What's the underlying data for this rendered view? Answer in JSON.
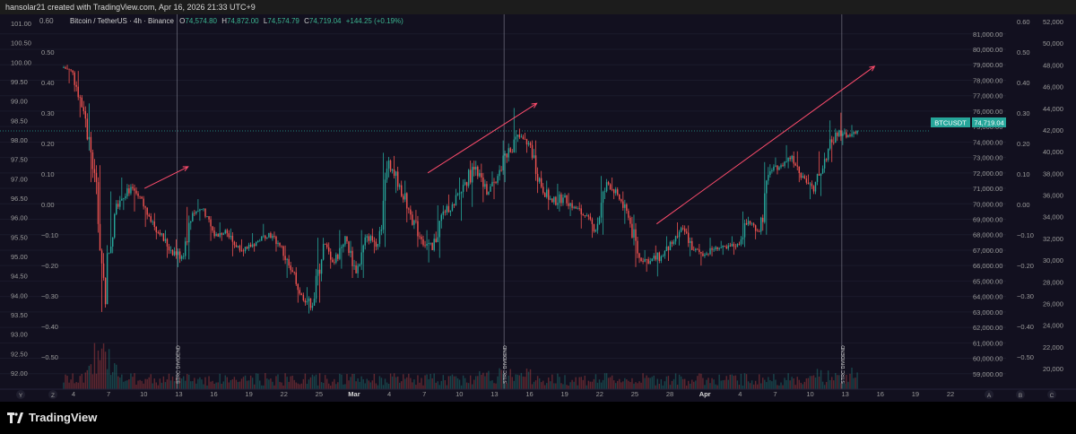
{
  "header": {
    "creator_line": "hansolar21 created with TradingView.com, Apr 16, 2026 21:33 UTC+9"
  },
  "brand": {
    "name": "TradingView"
  },
  "legend": {
    "symbol": "Bitcoin / TetherUS · 4h · Binance",
    "open_label": "O",
    "open": "74,574.80",
    "high_label": "H",
    "high": "74,872.00",
    "low_label": "L",
    "low": "74,574.79",
    "close_label": "C",
    "close": "74,719.04",
    "change": "+144.25 (+0.19%)",
    "top_scale_value": "0.60"
  },
  "price_tag": {
    "symbol": "BTCUSDT",
    "value": "74,719.04"
  },
  "annotations": {
    "event_label": "STRC DIVIDEND",
    "event_lines": [
      "Feb 13",
      "Mar 15",
      "Apr 15"
    ],
    "arrows": [
      {
        "from": [
          "Feb 10",
          71000
        ],
        "to": [
          "Feb 14",
          72400
        ]
      },
      {
        "from": [
          "Mar 8",
          72000
        ],
        "to": [
          "Mar 18",
          76500
        ]
      },
      {
        "from": [
          "Mar 29",
          68700
        ],
        "to": [
          "Apr 18",
          78900
        ]
      }
    ]
  },
  "colors": {
    "up": "#26a69a",
    "down": "#ef5350",
    "background": "#12101f",
    "annotation": "#ff4d6d",
    "accent": "#3bb38f"
  },
  "chart_data": {
    "type": "candlestick",
    "price_axis": {
      "min": 58000,
      "max": 81800,
      "ticks": [
        "81,000.00",
        "80,000.00",
        "79,000.00",
        "78,000.00",
        "77,000.00",
        "76,000.00",
        "75,000.00",
        "74,000.00",
        "73,000.00",
        "72,000.00",
        "71,000.00",
        "70,000.00",
        "69,000.00",
        "68,000.00",
        "67,000.00",
        "66,000.00",
        "65,000.00",
        "64,000.00",
        "63,000.00",
        "62,000.00",
        "61,000.00",
        "60,000.00",
        "59,000.00"
      ]
    },
    "left_axis_1": {
      "ticks": [
        "101.00",
        "100.50",
        "100.00",
        "99.50",
        "99.00",
        "98.50",
        "98.00",
        "97.50",
        "97.00",
        "96.50",
        "96.00",
        "95.50",
        "95.00",
        "94.50",
        "94.00",
        "93.50",
        "93.00",
        "92.50",
        "92.00"
      ]
    },
    "left_axis_2": {
      "ticks": [
        "0.50",
        "0.40",
        "0.30",
        "0.20",
        "0.10",
        "0.00",
        "−0.10",
        "−0.20",
        "−0.30",
        "−0.40",
        "−0.50"
      ]
    },
    "right_axis_2": {
      "ticks": [
        "0.60",
        "0.50",
        "0.40",
        "0.30",
        "0.20",
        "0.10",
        "0.00",
        "−0.10",
        "−0.20",
        "−0.30",
        "−0.40",
        "−0.50"
      ]
    },
    "right_axis_3": {
      "ticks": [
        "52,000",
        "50,000",
        "48,000",
        "46,000",
        "44,000",
        "42,000",
        "40,000",
        "38,000",
        "36,000",
        "34,000",
        "32,000",
        "30,000",
        "28,000",
        "26,000",
        "24,000",
        "22,000",
        "20,000"
      ]
    },
    "time_axis": {
      "ticks": [
        "4",
        "7",
        "10",
        "13",
        "16",
        "19",
        "22",
        "25",
        "Mar",
        "4",
        "7",
        "10",
        "13",
        "16",
        "19",
        "22",
        "25",
        "28",
        "Apr",
        "4",
        "7",
        "10",
        "13",
        "16",
        "19",
        "22"
      ],
      "corner_left": [
        "Y",
        "Z"
      ],
      "corner_right": [
        "A",
        "B",
        "C"
      ]
    },
    "daily_close": {
      "dates": [
        "Feb 3",
        "Feb 4",
        "Feb 5",
        "Feb 6",
        "Feb 7",
        "Feb 8",
        "Feb 9",
        "Feb 10",
        "Feb 11",
        "Feb 12",
        "Feb 13",
        "Feb 14",
        "Feb 15",
        "Feb 16",
        "Feb 17",
        "Feb 18",
        "Feb 19",
        "Feb 20",
        "Feb 21",
        "Feb 22",
        "Feb 23",
        "Feb 24",
        "Feb 25",
        "Feb 26",
        "Feb 27",
        "Feb 28",
        "Mar 1",
        "Mar 2",
        "Mar 3",
        "Mar 4",
        "Mar 5",
        "Mar 6",
        "Mar 7",
        "Mar 8",
        "Mar 9",
        "Mar 10",
        "Mar 11",
        "Mar 12",
        "Mar 13",
        "Mar 14",
        "Mar 15",
        "Mar 16",
        "Mar 17",
        "Mar 18",
        "Mar 19",
        "Mar 20",
        "Mar 21",
        "Mar 22",
        "Mar 23",
        "Mar 24",
        "Mar 25",
        "Mar 26",
        "Mar 27",
        "Mar 28",
        "Mar 29",
        "Mar 30",
        "Mar 31",
        "Apr 1",
        "Apr 2",
        "Apr 3",
        "Apr 4",
        "Apr 5",
        "Apr 6",
        "Apr 7",
        "Apr 8",
        "Apr 9",
        "Apr 10",
        "Apr 11",
        "Apr 12",
        "Apr 13",
        "Apr 14",
        "Apr 15",
        "Apr 16"
      ],
      "close": [
        78500,
        76000,
        72000,
        63500,
        70000,
        71000,
        70500,
        69200,
        68000,
        67000,
        66600,
        69400,
        69700,
        67900,
        68300,
        67200,
        67100,
        67600,
        68100,
        67300,
        65700,
        64100,
        63400,
        67400,
        66200,
        67900,
        65500,
        67900,
        67400,
        72800,
        71200,
        69300,
        67700,
        67000,
        69500,
        69900,
        71400,
        72400,
        70600,
        71800,
        73600,
        74300,
        73800,
        71100,
        70100,
        70400,
        69800,
        69200,
        68300,
        71400,
        70600,
        69100,
        66500,
        66300,
        66600,
        67400,
        68400,
        67000,
        66700,
        67200,
        67100,
        67400,
        68900,
        68200,
        72100,
        72500,
        73100,
        71800,
        70800,
        72900,
        74600,
        74300,
        74719.04
      ],
      "high": [
        79000,
        78600,
        76500,
        72500,
        70800,
        71700,
        71300,
        70500,
        69400,
        68300,
        67700,
        69800,
        70300,
        69200,
        68800,
        68400,
        67700,
        68100,
        68700,
        68200,
        67300,
        65900,
        64600,
        67800,
        67500,
        68300,
        67600,
        68300,
        68400,
        73300,
        73100,
        71500,
        69600,
        68300,
        69900,
        70600,
        71700,
        72800,
        72600,
        72100,
        74100,
        76200,
        74600,
        74100,
        71500,
        71300,
        70700,
        70100,
        69400,
        71800,
        71700,
        70800,
        69300,
        67000,
        67300,
        67900,
        68800,
        68600,
        67400,
        67800,
        67600,
        67900,
        69500,
        68800,
        72700,
        73000,
        73800,
        73400,
        71900,
        73400,
        75400,
        75900,
        75100
      ],
      "low": [
        77800,
        75600,
        71400,
        63000,
        66800,
        69600,
        69500,
        68500,
        67700,
        66500,
        65900,
        66400,
        68900,
        67600,
        67600,
        66600,
        66600,
        66900,
        67600,
        66900,
        65200,
        63600,
        62900,
        63600,
        65800,
        65800,
        65200,
        65200,
        66800,
        67200,
        70700,
        68800,
        67200,
        66200,
        66500,
        69200,
        68900,
        69800,
        70100,
        70300,
        71400,
        73300,
        73300,
        70700,
        69600,
        69500,
        69200,
        68400,
        67800,
        68000,
        70300,
        68700,
        65900,
        65600,
        65300,
        66300,
        67300,
        66600,
        66000,
        66600,
        66700,
        66700,
        67200,
        67700,
        68000,
        71900,
        72300,
        71400,
        70300,
        70500,
        72700,
        73800,
        74300
      ]
    }
  }
}
